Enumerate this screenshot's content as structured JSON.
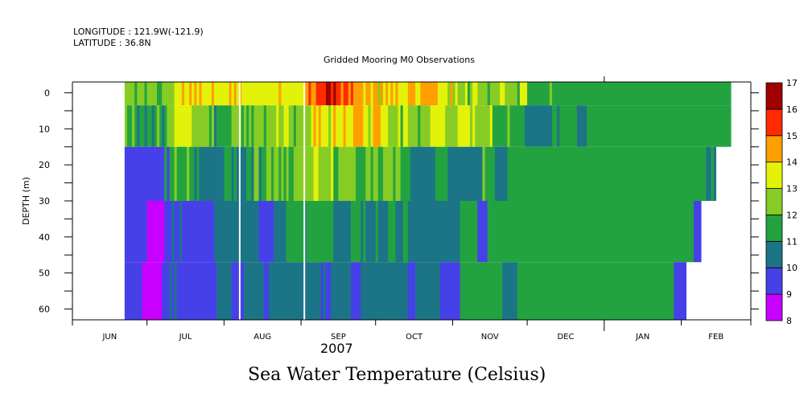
{
  "header": {
    "longitude": "LONGITUDE : 121.9W(-121.9)",
    "latitude": "LATITUDE : 36.8N",
    "title": "Gridded Mooring M0 Observations"
  },
  "footer": {
    "year": "2007",
    "variable_title": "Sea Water Temperature (Celsius)"
  },
  "chart_data": {
    "type": "heatmap",
    "title": "Gridded Mooring M0 Observations",
    "subtitle": "LONGITUDE : 121.9W(-121.9)  LATITUDE : 36.8N",
    "xlabel": "2007",
    "ylabel": "DEPTH (m)",
    "variable": "Sea Water Temperature (Celsius)",
    "x_ticks": [
      "JUN",
      "JUL",
      "AUG",
      "SEP",
      "OCT",
      "NOV",
      "DEC",
      "JAN",
      "FEB"
    ],
    "x_range_days": [
      0,
      273
    ],
    "x_month_starts_days": [
      0,
      30,
      61,
      92,
      122,
      153,
      183,
      214,
      245,
      273
    ],
    "y_ticks": [
      0,
      10,
      20,
      30,
      40,
      50,
      60
    ],
    "y_range": [
      -3,
      63
    ],
    "y_inverted": true,
    "colorbar": {
      "levels": [
        8,
        9,
        10,
        11,
        12,
        13,
        14,
        15,
        16,
        17
      ],
      "colors": [
        "#c800ff",
        "#4640e8",
        "#1c7487",
        "#23a340",
        "#86cc24",
        "#e3f208",
        "#ff9f00",
        "#ff2a00",
        "#a00000"
      ]
    },
    "data_start_day": 21,
    "depth_bands": [
      {
        "top": -3,
        "bottom": 3.5,
        "runs": "4444344434444334444455565565656555565555556565655555555555555565555555556676677778878776776766665665664656565655556665566666665555464544453455444434444554444435553333333334333333333333333333333333333333333333333333333333333333333333333333333333"
      },
      {
        "top": 3.5,
        "bottom": 15,
        "runs": "4334323323323432344455555554444444342333333444434343444434444544554434444445656555456555655566665545666555444453554444344445555554444455555454444445333333433333322222222222332333333322223333333333333333333333333333333333333333333333333333333333"
      },
      {
        "top": 15,
        "bottom": 30,
        "runs": "1111111111111111313343333433232222222222333232222332442334434434343344444444554444453344444443333443443344443443333222222222233333222222222222224333322222333333333333333333333333333333333333333333333333333333333333333333333333333333332232"
      },
      {
        "top": 30,
        "bottom": 47,
        "runs": "1111111110000000111211211111111111112222222222222222221111112222233333332333333333332222222333323222232222333222332222222222222222222223333333111133333333333333333333333333333333333333333333333333333333333333333333333333333333333111"
      },
      {
        "top": 47,
        "bottom": 63,
        "runs": "1111111000000001112121111111111111111222222111112222222211222222222222222222222121122222222111122222222222222222221112222222222111111113333333333333333322222233333333333333333333333333333333333333333333333333333333333333311111"
      }
    ],
    "gaps_days": [
      67,
      93
    ]
  }
}
